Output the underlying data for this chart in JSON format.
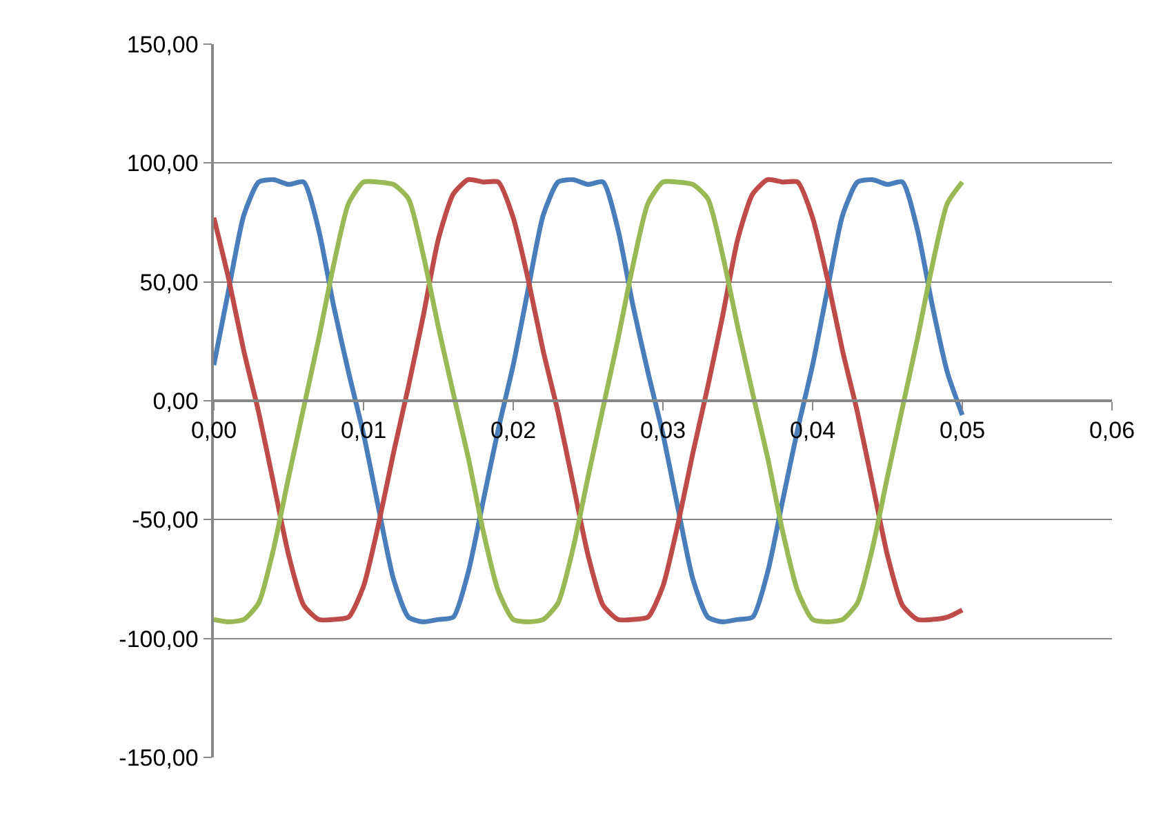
{
  "chart_data": {
    "type": "line",
    "x": [
      0,
      0.001,
      0.002,
      0.003,
      0.004,
      0.005,
      0.006,
      0.007,
      0.008,
      0.009,
      0.01,
      0.011,
      0.012,
      0.013,
      0.014,
      0.015,
      0.016,
      0.017,
      0.018,
      0.019,
      0.02,
      0.021,
      0.022,
      0.023,
      0.024,
      0.025,
      0.026,
      0.027,
      0.028,
      0.029,
      0.03,
      0.031,
      0.032,
      0.033,
      0.034,
      0.035,
      0.036,
      0.037,
      0.038,
      0.039,
      0.04,
      0.041,
      0.042,
      0.043,
      0.044,
      0.045,
      0.046,
      0.047,
      0.048,
      0.049,
      0.05
    ],
    "series": [
      {
        "color": "#4a7ebb",
        "values": [
          15,
          47,
          78,
          92,
          93,
          91,
          92,
          72,
          40,
          12,
          -14,
          -45,
          -75,
          -91,
          -93,
          -92,
          -91,
          -72,
          -42,
          -12,
          15,
          47,
          78,
          92,
          93,
          91,
          92,
          72,
          40,
          12,
          -14,
          -45,
          -75,
          -91,
          -93,
          -92,
          -91,
          -72,
          -42,
          -12,
          15,
          47,
          78,
          92,
          93,
          91,
          92,
          72,
          40,
          12,
          -6
        ]
      },
      {
        "color": "#be4b48",
        "values": [
          77,
          51,
          21,
          -5,
          -35,
          -65,
          -86,
          -92,
          -92,
          -91,
          -78,
          -52,
          -22,
          6,
          36,
          68,
          87,
          93,
          92,
          92,
          77,
          51,
          21,
          -5,
          -35,
          -65,
          -86,
          -92,
          -92,
          -91,
          -78,
          -52,
          -22,
          6,
          36,
          68,
          87,
          93,
          92,
          92,
          77,
          51,
          21,
          -5,
          -35,
          -65,
          -86,
          -92,
          -92,
          -91,
          -88
        ]
      },
      {
        "color": "#98b954",
        "values": [
          -92,
          -93,
          -92,
          -85,
          -62,
          -32,
          -3,
          26,
          57,
          83,
          92,
          92,
          91,
          85,
          61,
          31,
          3,
          -24,
          -55,
          -80,
          -92,
          -93,
          -92,
          -85,
          -62,
          -32,
          -3,
          26,
          57,
          83,
          92,
          92,
          91,
          85,
          61,
          31,
          3,
          -24,
          -55,
          -80,
          -92,
          -93,
          -92,
          -85,
          -62,
          -32,
          -3,
          26,
          57,
          83,
          92
        ]
      }
    ],
    "xlim": [
      0,
      0.06
    ],
    "xticks": [
      {
        "value": 0,
        "label": "0,00"
      },
      {
        "value": 0.01,
        "label": "0,01"
      },
      {
        "value": 0.02,
        "label": "0,02"
      },
      {
        "value": 0.03,
        "label": "0,03"
      },
      {
        "value": 0.04,
        "label": "0,04"
      },
      {
        "value": 0.05,
        "label": "0,05"
      },
      {
        "value": 0.06,
        "label": "0,06"
      }
    ],
    "ylim": [
      -150,
      150
    ],
    "yticks": [
      {
        "value": -150,
        "label": "-150,00"
      },
      {
        "value": -100,
        "label": "-100,00"
      },
      {
        "value": -50,
        "label": "-50,00"
      },
      {
        "value": 0,
        "label": "0,00"
      },
      {
        "value": 50,
        "label": "50,00"
      },
      {
        "value": 100,
        "label": "100,00"
      },
      {
        "value": 150,
        "label": "150,00"
      }
    ],
    "grid": "y",
    "line_style": "solid",
    "marker": "none"
  }
}
